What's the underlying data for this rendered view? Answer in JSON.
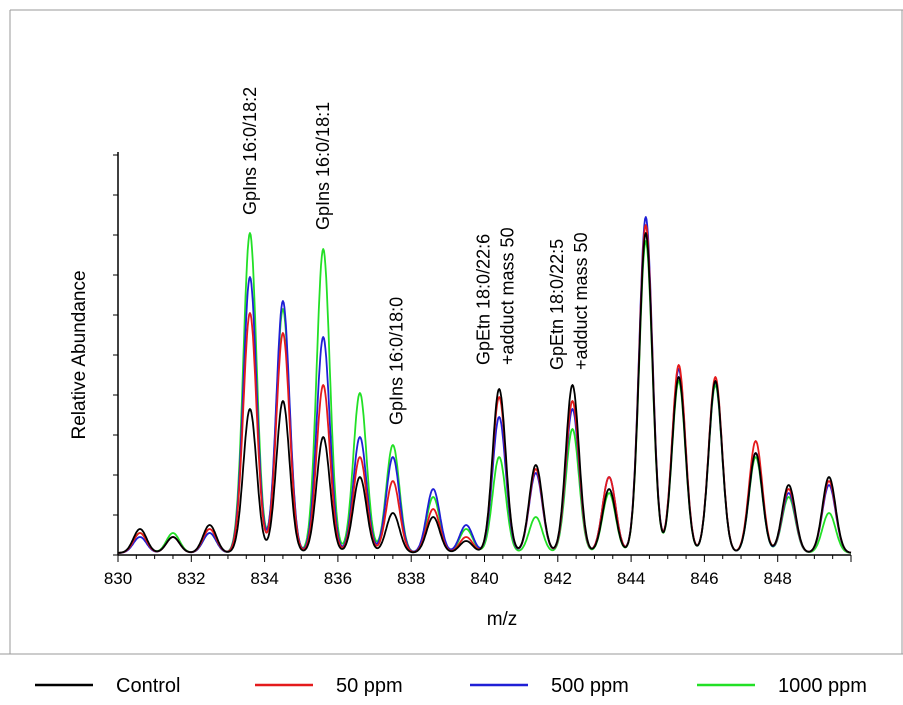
{
  "chart_data": {
    "type": "line",
    "xlabel": "m/z",
    "ylabel": "Relative Abundance",
    "xlim": [
      830,
      850
    ],
    "ylim": [
      0,
      1
    ],
    "x_ticks": [
      "830",
      "832",
      "834",
      "836",
      "838",
      "840",
      "842",
      "844",
      "846",
      "848"
    ],
    "legend_position": "bottom",
    "peak_positions": [
      830.6,
      831.5,
      832.5,
      833.6,
      834.5,
      835.6,
      836.6,
      837.5,
      838.6,
      839.5,
      840.4,
      841.4,
      842.4,
      843.4,
      844.4,
      845.3,
      846.3,
      847.4,
      848.3,
      849.4
    ],
    "annotations": [
      {
        "lines": [
          "GpIns 16:0/18:2"
        ],
        "x": 833.6
      },
      {
        "lines": [
          "GpIns 16:0/18:1"
        ],
        "x": 835.6
      },
      {
        "lines": [
          "GpIns 16:0/18:0"
        ],
        "x": 837.6
      },
      {
        "lines": [
          "GpEtn 18:0/22:6",
          "+adduct mass 50"
        ],
        "x": 840.3
      },
      {
        "lines": [
          "GpEtn 18:0/22:5",
          "+adduct mass 50"
        ],
        "x": 842.3
      }
    ],
    "series": [
      {
        "name": "Control",
        "color": "#000000",
        "peak_heights": [
          0.06,
          0.04,
          0.07,
          0.36,
          0.38,
          0.29,
          0.19,
          0.1,
          0.09,
          0.03,
          0.41,
          0.22,
          0.42,
          0.16,
          0.8,
          0.44,
          0.43,
          0.25,
          0.17,
          0.19
        ]
      },
      {
        "name": "50 ppm",
        "color": "#e41a1c",
        "peak_heights": [
          0.05,
          0.04,
          0.06,
          0.6,
          0.55,
          0.42,
          0.24,
          0.18,
          0.11,
          0.04,
          0.39,
          0.21,
          0.38,
          0.19,
          0.82,
          0.47,
          0.44,
          0.28,
          0.16,
          0.18
        ]
      },
      {
        "name": "500 ppm",
        "color": "#1f1fd6",
        "peak_heights": [
          0.04,
          0.04,
          0.05,
          0.69,
          0.63,
          0.54,
          0.29,
          0.24,
          0.16,
          0.07,
          0.34,
          0.2,
          0.36,
          0.19,
          0.84,
          0.46,
          0.43,
          0.25,
          0.15,
          0.17
        ]
      },
      {
        "name": "1000 ppm",
        "color": "#22e026",
        "peak_heights": [
          0.05,
          0.05,
          0.05,
          0.8,
          0.61,
          0.76,
          0.4,
          0.27,
          0.14,
          0.06,
          0.24,
          0.09,
          0.31,
          0.15,
          0.78,
          0.43,
          0.42,
          0.24,
          0.14,
          0.1
        ]
      }
    ]
  }
}
